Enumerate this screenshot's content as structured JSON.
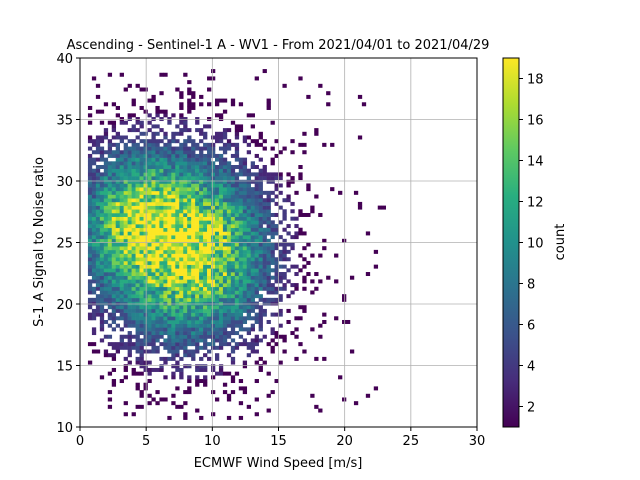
{
  "chart_data": {
    "type": "heatmap",
    "title": "Ascending - Sentinel-1 A - WV1 - From 2021/04/01 to 2021/04/29",
    "xlabel": "ECMWF Wind Speed [m/s]",
    "ylabel": "S-1 A Signal to Noise ratio",
    "xlim": [
      0,
      30
    ],
    "ylim": [
      10,
      40
    ],
    "xticks": [
      0,
      5,
      10,
      15,
      20,
      25,
      30
    ],
    "yticks": [
      10,
      15,
      20,
      25,
      30,
      35,
      40
    ],
    "grid": true,
    "colormap": "viridis",
    "colorbar": {
      "label": "count",
      "range": [
        1,
        19
      ],
      "ticks": [
        2,
        4,
        6,
        8,
        10,
        12,
        14,
        16,
        18
      ]
    },
    "bin_size": {
      "x": 0.3,
      "y": 0.3
    },
    "distribution": {
      "peak": {
        "x": 6.8,
        "y": 24.6,
        "count": 19
      },
      "cloud_x_range": [
        0.5,
        23
      ],
      "cloud_y_range": [
        10.5,
        39
      ]
    }
  }
}
